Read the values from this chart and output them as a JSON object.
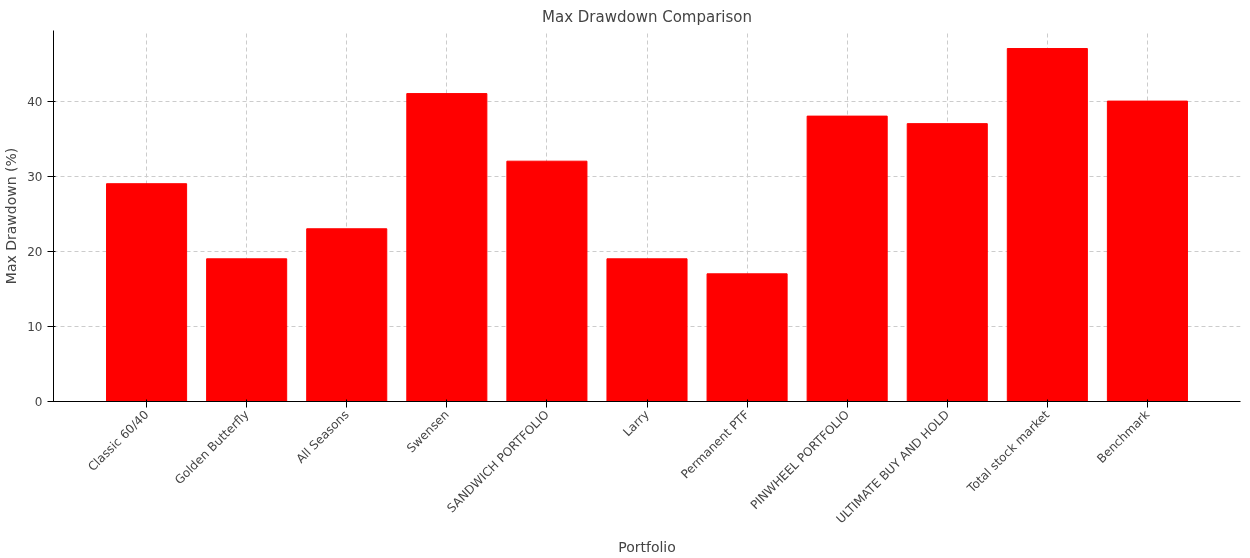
{
  "chart_data": {
    "type": "bar",
    "title": "Max Drawdown Comparison",
    "xlabel": "Portfolio",
    "ylabel": "Max Drawdown (%)",
    "categories": [
      "Classic 60/40",
      "Golden Butterfly",
      "All Seasons",
      "Swensen",
      "SANDWICH PORTFOLIO",
      "Larry",
      "Permanent PTF",
      "PINWHEEL PORTFOLIO",
      "ULTIMATE BUY AND HOLD",
      "Total stock market",
      "Benchmark"
    ],
    "values": [
      29,
      19,
      23,
      41,
      32,
      19,
      17,
      38,
      37,
      47,
      40
    ],
    "color": "#ff0000",
    "ylim": [
      0,
      49.4
    ],
    "yticks": [
      0,
      10,
      20,
      30,
      40
    ],
    "grid": true
  }
}
